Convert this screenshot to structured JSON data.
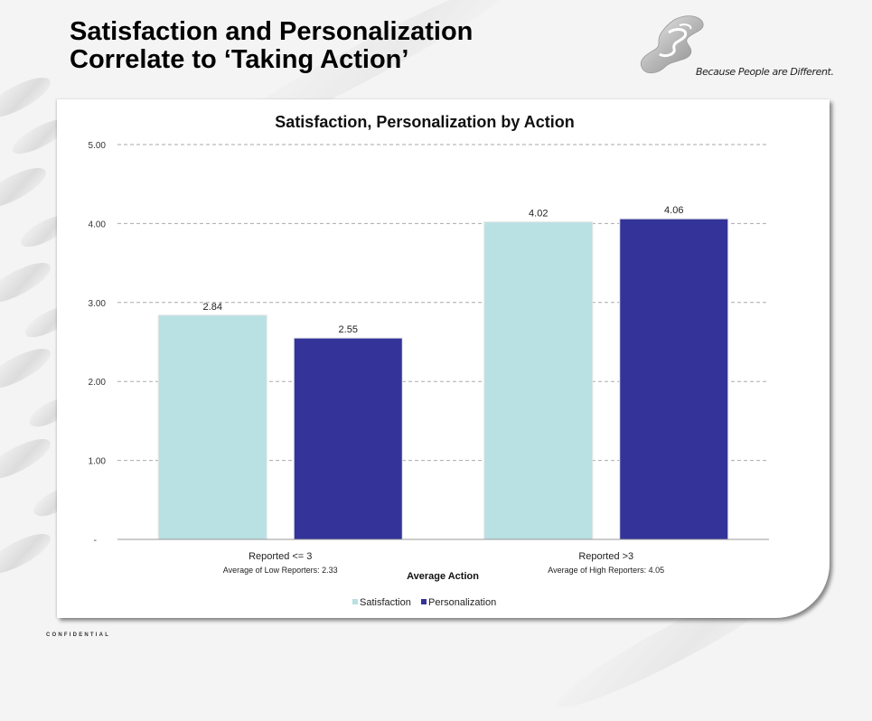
{
  "slide": {
    "title": "Satisfaction and Personalization\nCorrelate to ‘Taking Action’",
    "tagline": "Because People are Different.",
    "footer": "CONFIDENTIAL"
  },
  "chart_data": {
    "type": "bar",
    "title": "Satisfaction, Personalization by Action",
    "xlabel": "Average Action",
    "ylabel": "",
    "ylim": [
      0,
      5
    ],
    "yticks": [
      0,
      1,
      2,
      3,
      4,
      5
    ],
    "ytick_labels": [
      "-",
      "1.00",
      "2.00",
      "3.00",
      "4.00",
      "5.00"
    ],
    "grid": true,
    "legend_position": "bottom",
    "categories": [
      "Reported <= 3",
      "Reported >3"
    ],
    "category_sublabels": [
      "Average of Low Reporters: 2.33",
      "Average of High Reporters: 4.05"
    ],
    "series": [
      {
        "name": "Satisfaction",
        "color": "#b9e0e3",
        "values": [
          2.84,
          4.02
        ],
        "labels": [
          "2.84",
          "4.02"
        ]
      },
      {
        "name": "Personalization",
        "color": "#333399",
        "values": [
          2.55,
          4.06
        ],
        "labels": [
          "2.55",
          "4.06"
        ]
      }
    ]
  }
}
